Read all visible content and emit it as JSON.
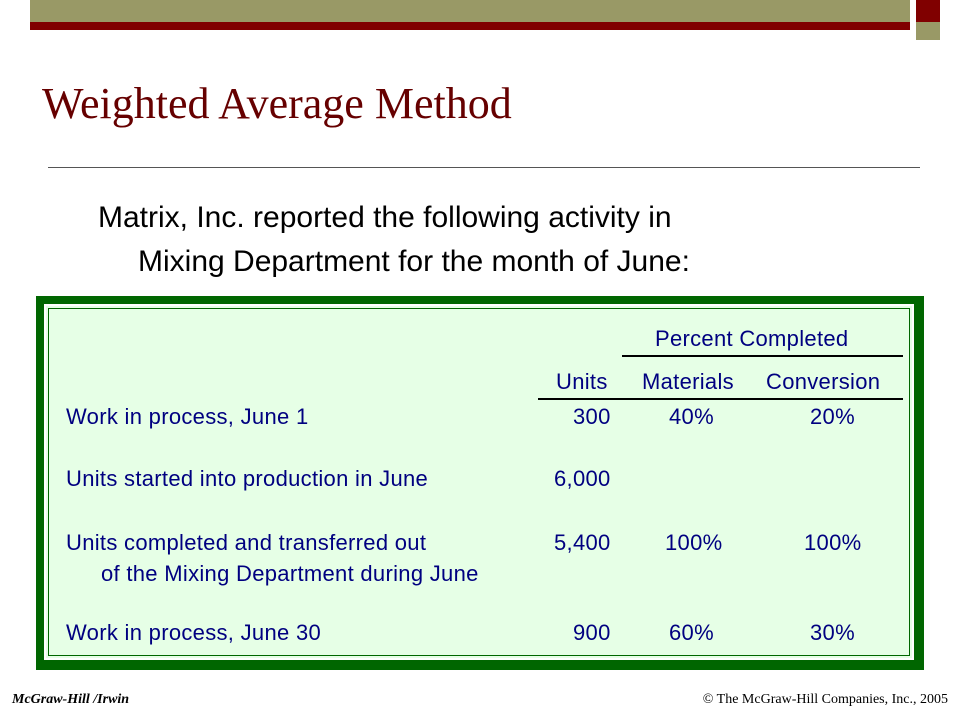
{
  "slide": {
    "title": "Weighted Average Method",
    "intro_line1": "Matrix, Inc. reported the following activity in",
    "intro_line2": "Mixing Department for the month of June:"
  },
  "table": {
    "group_header": "Percent Completed",
    "headers": {
      "units": "Units",
      "materials": "Materials",
      "conversion": "Conversion"
    },
    "rows": [
      {
        "label": "Work in process, June 1",
        "units": "300",
        "materials": "40%",
        "conversion": "20%"
      },
      {
        "label": "Units started into production in June",
        "units": "6,000"
      },
      {
        "label": "Units completed and transferred out",
        "label2": "of the Mixing Department during June",
        "units": "5,400",
        "materials": "100%",
        "conversion": "100%"
      },
      {
        "label": "Work in process, June 30",
        "units": "900",
        "materials": "60%",
        "conversion": "30%"
      }
    ]
  },
  "footer": {
    "left": "McGraw-Hill /Irwin",
    "right": "© The McGraw-Hill Companies, Inc., 2005"
  },
  "colors": {
    "title": "#660000",
    "table_text": "#000080",
    "panel_border": "#006600",
    "panel_fill": "#e6ffe6",
    "band_olive": "#999966",
    "band_maroon": "#800000"
  }
}
